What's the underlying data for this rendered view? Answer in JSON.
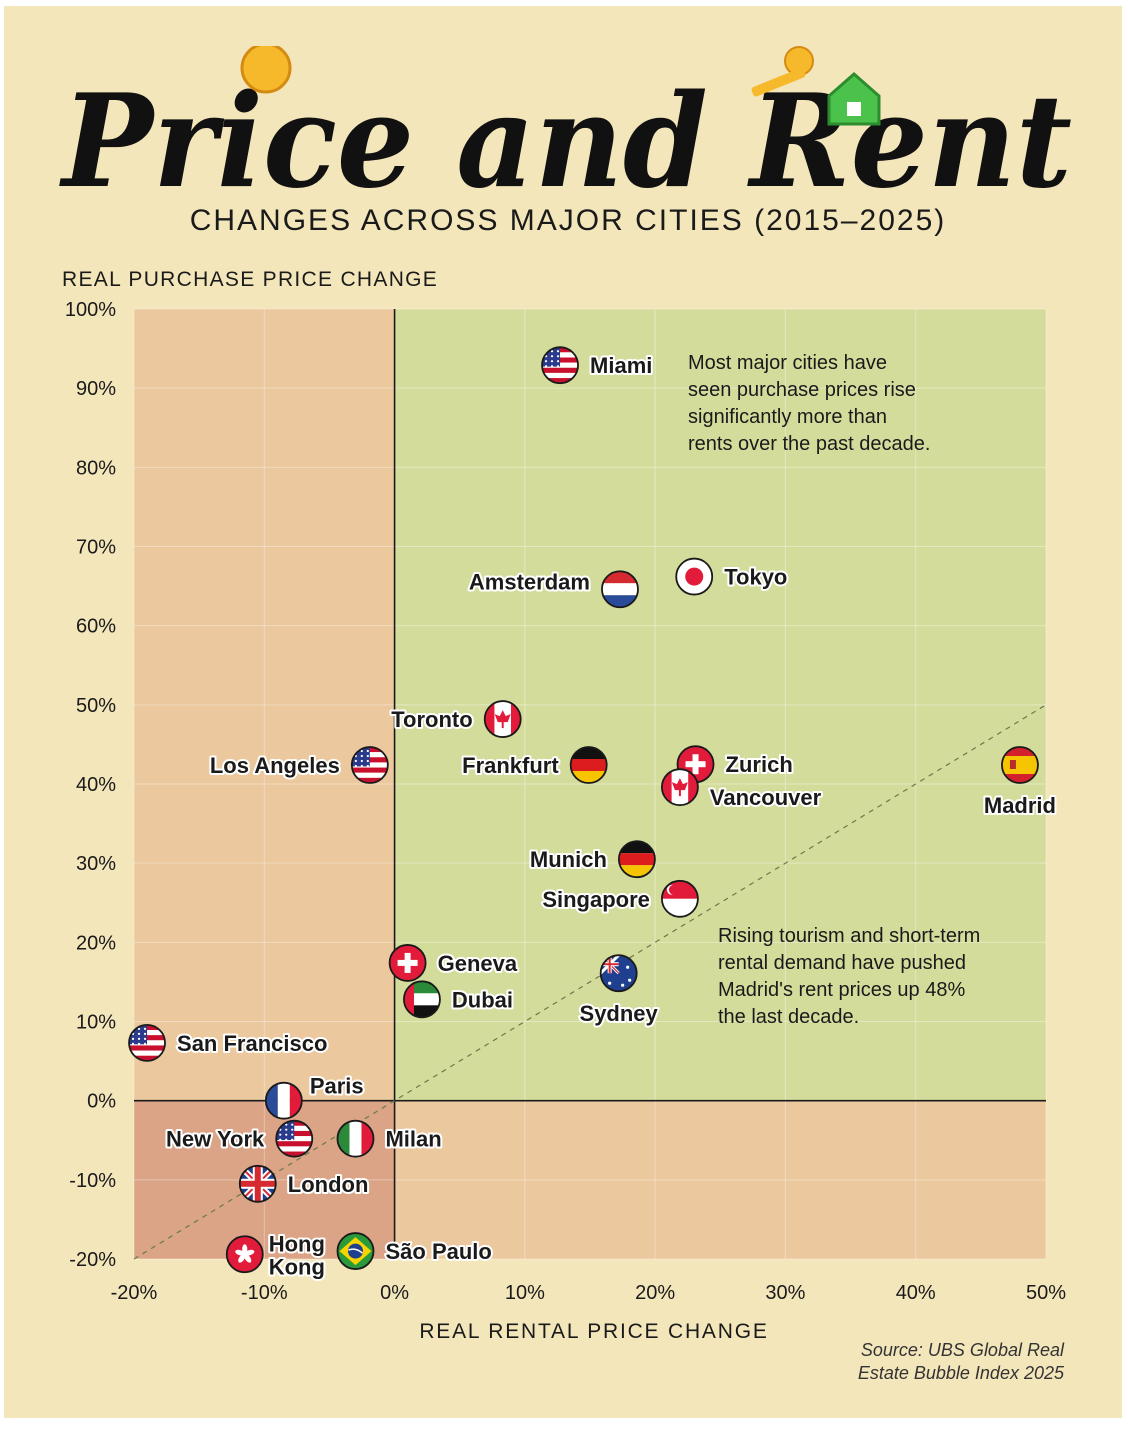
{
  "title": "Price and Rent",
  "subtitle": "CHANGES ACROSS MAJOR CITIES (2015–2025)",
  "source": {
    "line1": "Source: UBS Global Real",
    "line2": "Estate Bubble Index 2025"
  },
  "annotations": {
    "top": [
      "Most major cities have",
      "seen purchase prices rise",
      "significantly more than",
      "rents over the past decade."
    ],
    "madrid": [
      "Rising tourism and short-term",
      "rental demand have pushed",
      "Madrid's rent prices up 48%",
      "the last decade."
    ]
  },
  "colors": {
    "background": "#f4e6bb",
    "green_zone": "#d4dc9c",
    "orange_zone": "#ebc89d",
    "dark_zone": "#dba486"
  },
  "chart_data": {
    "type": "scatter",
    "title": "Price and Rent",
    "xlabel": "REAL RENTAL PRICE CHANGE",
    "ylabel": "REAL PURCHASE PRICE CHANGE",
    "xlim": [
      -20,
      50
    ],
    "ylim": [
      -20,
      100
    ],
    "x_ticks": [
      "-20%",
      "-10%",
      "0%",
      "10%",
      "20%",
      "30%",
      "40%",
      "50%"
    ],
    "y_ticks": [
      "100%",
      "90%",
      "80%",
      "70%",
      "60%",
      "50%",
      "40%",
      "30%",
      "20%",
      "10%",
      "0%",
      "-10%",
      "-20%"
    ],
    "reference_line": "y = x",
    "points": [
      {
        "city": "Miami",
        "flag": "us-flag-icon",
        "x": 12.7,
        "y": 92.9
      },
      {
        "city": "Tokyo",
        "flag": "japan-flag-icon",
        "x": 23.0,
        "y": 66.2
      },
      {
        "city": "Amsterdam",
        "flag": "netherlands-flag-icon",
        "x": 17.3,
        "y": 64.6
      },
      {
        "city": "Toronto",
        "flag": "canada-flag-icon",
        "x": 8.3,
        "y": 48.2
      },
      {
        "city": "Los Angeles",
        "flag": "us-flag-icon",
        "x": -1.9,
        "y": 42.4
      },
      {
        "city": "Frankfurt",
        "flag": "germany-flag-icon",
        "x": 14.9,
        "y": 42.4
      },
      {
        "city": "Zurich",
        "flag": "switzerland-flag-icon",
        "x": 23.1,
        "y": 42.5
      },
      {
        "city": "Vancouver",
        "flag": "canada-flag-icon",
        "x": 21.9,
        "y": 39.6
      },
      {
        "city": "Madrid",
        "flag": "spain-flag-icon",
        "x": 48.0,
        "y": 42.4
      },
      {
        "city": "Munich",
        "flag": "germany-flag-icon",
        "x": 18.6,
        "y": 30.5
      },
      {
        "city": "Singapore",
        "flag": "singapore-flag-icon",
        "x": 21.9,
        "y": 25.5
      },
      {
        "city": "Geneva",
        "flag": "switzerland-flag-icon",
        "x": 1.0,
        "y": 17.4
      },
      {
        "city": "Sydney",
        "flag": "australia-flag-icon",
        "x": 17.2,
        "y": 16.1
      },
      {
        "city": "Dubai",
        "flag": "uae-flag-icon",
        "x": 2.1,
        "y": 12.8
      },
      {
        "city": "San Francisco",
        "flag": "us-flag-icon",
        "x": -19.0,
        "y": 7.3
      },
      {
        "city": "Paris",
        "flag": "france-flag-icon",
        "x": -8.5,
        "y": 0.0
      },
      {
        "city": "New York",
        "flag": "us-flag-icon",
        "x": -7.7,
        "y": -4.8
      },
      {
        "city": "Milan",
        "flag": "italy-flag-icon",
        "x": -3.0,
        "y": -4.8
      },
      {
        "city": "London",
        "flag": "uk-flag-icon",
        "x": -10.5,
        "y": -10.5
      },
      {
        "city": "Hong Kong",
        "flag": "hong-kong-flag-icon",
        "x": -11.5,
        "y": -19.4
      },
      {
        "city": "São Paulo",
        "flag": "brazil-flag-icon",
        "x": -3.0,
        "y": -19.0
      }
    ]
  }
}
